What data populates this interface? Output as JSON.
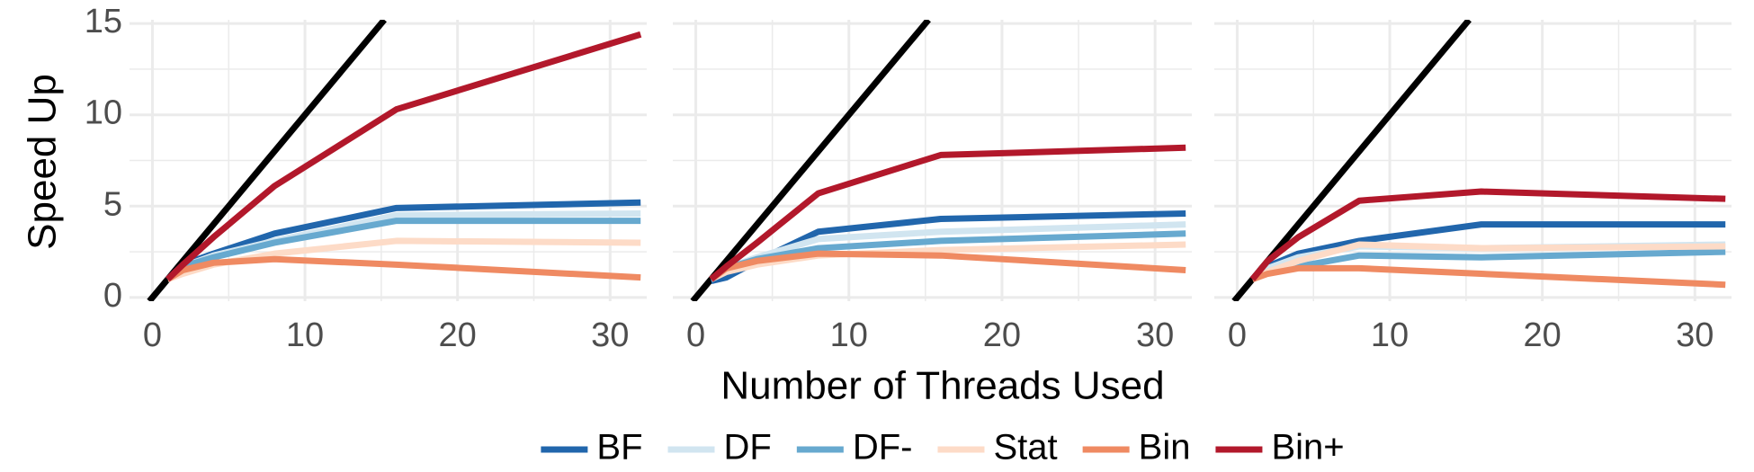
{
  "chart_data": [
    {
      "type": "line",
      "ylabel": "Speed Up",
      "xlabel": "Number of Threads Used",
      "x": [
        1,
        2,
        4,
        8,
        16,
        32
      ],
      "xlim": [
        -1.5,
        32.4
      ],
      "xticks": [
        0,
        10,
        20,
        30
      ],
      "xminor": [
        5,
        15,
        25
      ],
      "ylim": [
        -0.2,
        15.2
      ],
      "yticks": [
        0,
        5,
        10,
        15
      ],
      "yminor": [
        2.5,
        7.5,
        12.5
      ],
      "grid": true,
      "identity_line": true,
      "identity_color": "#000000",
      "legend": "bottom",
      "series": [
        {
          "name": "BF",
          "color": "#2166ac",
          "values": [
            1,
            1.8,
            2.4,
            3.5,
            4.9,
            5.2
          ]
        },
        {
          "name": "DF",
          "color": "#d1e5f0",
          "values": [
            1,
            1.7,
            2.3,
            3.1,
            4.5,
            4.6
          ]
        },
        {
          "name": "DF-",
          "color": "#67a9cf",
          "values": [
            1,
            1.7,
            2.2,
            3.0,
            4.2,
            4.2
          ]
        },
        {
          "name": "Stat",
          "color": "#fddbc7",
          "values": [
            1,
            1.3,
            1.8,
            2.4,
            3.1,
            3.0
          ]
        },
        {
          "name": "Bin",
          "color": "#ef8a62",
          "values": [
            1,
            1.5,
            1.9,
            2.1,
            1.8,
            1.1
          ]
        },
        {
          "name": "Bin+",
          "color": "#b2182b",
          "values": [
            1,
            1.8,
            3.3,
            6.1,
            10.3,
            14.4
          ]
        }
      ]
    },
    {
      "type": "line",
      "x": [
        1,
        2,
        4,
        8,
        16,
        32
      ],
      "xlim": [
        -1.5,
        32.4
      ],
      "xticks": [
        0,
        10,
        20,
        30
      ],
      "xminor": [
        5,
        15,
        25
      ],
      "ylim": [
        -0.2,
        15.2
      ],
      "yminor": [
        2.5,
        7.5,
        12.5
      ],
      "yticks_hidden": [
        0,
        5,
        10,
        15
      ],
      "grid": true,
      "identity_line": true,
      "identity_color": "#000000",
      "series": [
        {
          "color": "#2166ac",
          "values": [
            0.9,
            1.1,
            2.0,
            3.6,
            4.3,
            4.6
          ]
        },
        {
          "color": "#d1e5f0",
          "values": [
            1,
            1.6,
            2.2,
            3.2,
            3.6,
            4.0
          ]
        },
        {
          "color": "#67a9cf",
          "values": [
            1,
            1.6,
            2.1,
            2.7,
            3.1,
            3.5
          ]
        },
        {
          "color": "#fddbc7",
          "values": [
            1,
            1.4,
            1.8,
            2.3,
            2.6,
            2.9
          ]
        },
        {
          "color": "#ef8a62",
          "values": [
            1,
            1.6,
            2.0,
            2.4,
            2.3,
            1.5
          ]
        },
        {
          "color": "#b2182b",
          "values": [
            1,
            1.7,
            3.0,
            5.7,
            7.8,
            8.2
          ]
        }
      ]
    },
    {
      "type": "line",
      "x": [
        1,
        2,
        4,
        8,
        16,
        32
      ],
      "xlim": [
        -1.5,
        32.4
      ],
      "xticks": [
        0,
        10,
        20,
        30
      ],
      "xminor": [
        5,
        15,
        25
      ],
      "ylim": [
        -0.2,
        15.2
      ],
      "yminor": [
        2.5,
        7.5,
        12.5
      ],
      "yticks_hidden": [
        0,
        5,
        10,
        15
      ],
      "grid": true,
      "identity_line": true,
      "identity_color": "#000000",
      "series": [
        {
          "color": "#2166ac",
          "values": [
            1,
            1.7,
            2.4,
            3.1,
            4.0,
            4.0
          ]
        },
        {
          "color": "#d1e5f0",
          "values": [
            1,
            1.6,
            2.2,
            2.8,
            2.7,
            2.9
          ]
        },
        {
          "color": "#67a9cf",
          "values": [
            1,
            1.4,
            1.7,
            2.3,
            2.2,
            2.5
          ]
        },
        {
          "color": "#fddbc7",
          "values": [
            1,
            1.4,
            2.0,
            2.9,
            2.7,
            2.8
          ]
        },
        {
          "color": "#ef8a62",
          "values": [
            1,
            1.3,
            1.6,
            1.6,
            1.3,
            0.7
          ]
        },
        {
          "color": "#b2182b",
          "values": [
            1,
            2.0,
            3.3,
            5.3,
            5.8,
            5.4
          ]
        }
      ]
    }
  ]
}
